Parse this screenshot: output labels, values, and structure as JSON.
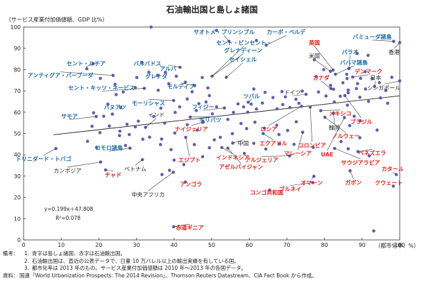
{
  "title": "石油輸出国と島しょ諸国",
  "chart_data": {
    "type": "scatter",
    "ylabel": "（サービス産業付加価値額、GDP 比%）",
    "xlabel": "（都市化率、%）",
    "xlim": [
      0,
      100
    ],
    "ylim": [
      0,
      100
    ],
    "xticks": [
      0,
      10,
      20,
      30,
      40,
      50,
      60,
      70,
      80,
      90,
      100
    ],
    "yticks": [
      0,
      10,
      20,
      30,
      40,
      50,
      60,
      70,
      80,
      90,
      100
    ],
    "grid": false,
    "colors": {
      "island": "#1a6ba8",
      "oil": "#e0211c",
      "other": "#222222",
      "point": "#5f5fae",
      "trend": "#222222"
    },
    "trendline": {
      "slope": 0.199,
      "intercept": 47.808,
      "equation": "y=0.199x＋47.808",
      "r2": "R²=0.078"
    },
    "labeled_points": [
      {
        "label": "香港",
        "x": 100,
        "y": 92.7,
        "group": "other",
        "lx": 98.5,
        "ly": 88.3
      },
      {
        "label": "バミューダ諸島",
        "x": 98.4,
        "y": 93.3,
        "group": "island",
        "lx": 92.7,
        "ly": 95.5
      },
      {
        "label": "サオトメ・プリンシプル",
        "x": 54.6,
        "y": 93.3,
        "group": "island",
        "lx": 53.3,
        "ly": 97.7
      },
      {
        "label": "カーボ・ベルデ",
        "x": 64.5,
        "y": 91.5,
        "group": "island",
        "lx": 69.8,
        "ly": 97.7
      },
      {
        "label": "セント・ビンセント・",
        "x": 50.1,
        "y": 76.9,
        "group": "island",
        "lx": 58.6,
        "ly": 92.7
      },
      {
        "label": "グレナディーン",
        "x": 50.1,
        "y": 76.9,
        "group": "island",
        "lx": 58.4,
        "ly": 89.1
      },
      {
        "label": "セイシェル",
        "x": 53.9,
        "y": 76.4,
        "group": "island",
        "lx": 58.3,
        "ly": 84.8
      },
      {
        "label": "英国",
        "x": 82.3,
        "y": 79.8,
        "group": "oil",
        "lx": 77.3,
        "ly": 92.7
      },
      {
        "label": "パラオ",
        "x": 86.5,
        "y": 80.5,
        "group": "island",
        "lx": 86.8,
        "ly": 88.3
      },
      {
        "label": "米国",
        "x": 81.6,
        "y": 79.2,
        "group": "other",
        "lx": 77.3,
        "ly": 86.5
      },
      {
        "label": "バハマ諸島",
        "x": 82.9,
        "y": 77.8,
        "group": "island",
        "lx": 87.8,
        "ly": 83.4
      },
      {
        "label": "デンマーク",
        "x": 87.5,
        "y": 76.5,
        "group": "oil",
        "lx": 91.7,
        "ly": 79.2
      },
      {
        "label": "カナダ",
        "x": 81.7,
        "y": 71.1,
        "group": "oil",
        "lx": 79.1,
        "ly": 76.3
      },
      {
        "label": "日本",
        "x": 93.3,
        "y": 72.1,
        "group": "other",
        "lx": 93.6,
        "ly": 76.3
      },
      {
        "label": "シンガポール",
        "x": 100,
        "y": 74.7,
        "group": "other",
        "lx": 95.8,
        "ly": 71.5
      },
      {
        "label": "ドイツ",
        "x": 75.1,
        "y": 68.4,
        "group": "other",
        "lx": 71.5,
        "ly": 69.3
      },
      {
        "label": "ブラジル",
        "x": 85.4,
        "y": 67.8,
        "group": "oil",
        "lx": 89.8,
        "ly": 55.6
      },
      {
        "label": "メキシコ",
        "x": 79,
        "y": 60.7,
        "group": "oil",
        "lx": 84.2,
        "ly": 59.4
      },
      {
        "label": "韓国",
        "x": 82.4,
        "y": 59.5,
        "group": "other",
        "lx": 82.6,
        "ly": 52.8
      },
      {
        "label": "ノルウェー",
        "x": 80.1,
        "y": 57.6,
        "group": "oil",
        "lx": 85.7,
        "ly": 48.8
      },
      {
        "label": "ロシア",
        "x": 73.9,
        "y": 62.8,
        "group": "oil",
        "lx": 65.2,
        "ly": 52.1
      },
      {
        "label": "コロンビア",
        "x": 76.2,
        "y": 62.4,
        "group": "oil",
        "lx": 76.7,
        "ly": 44.4
      },
      {
        "label": "エクアドル",
        "x": 63.7,
        "y": 50,
        "group": "oil",
        "lx": 66.4,
        "ly": 45.4
      },
      {
        "label": "マレーシア",
        "x": 74.2,
        "y": 50.6,
        "group": "oil",
        "lx": 72.9,
        "ly": 40.7
      },
      {
        "label": "UAE",
        "x": 85.3,
        "y": 57.5,
        "group": "oil",
        "lx": 80.7,
        "ly": 40.3
      },
      {
        "label": "ベネズエラ",
        "x": 88.9,
        "y": 41.5,
        "group": "oil",
        "lx": 92.7,
        "ly": 40.9
      },
      {
        "label": "サウジアラビア",
        "x": 82.7,
        "y": 43,
        "group": "oil",
        "lx": 89.6,
        "ly": 36.4
      },
      {
        "label": "オマーン",
        "x": 77.2,
        "y": 29.9,
        "group": "oil",
        "lx": 76.6,
        "ly": 26.9
      },
      {
        "label": "ブルネイ",
        "x": 76.9,
        "y": 26.9,
        "group": "oil",
        "lx": 70.9,
        "ly": 23.9
      },
      {
        "label": "ガボン",
        "x": 86.8,
        "y": 32.5,
        "group": "oil",
        "lx": 87.7,
        "ly": 27.1
      },
      {
        "label": "カタール",
        "x": 99.1,
        "y": 30.7,
        "group": "oil",
        "lx": 98.1,
        "ly": 33.4
      },
      {
        "label": "クウェート",
        "x": 98.3,
        "y": 25.3,
        "group": "oil",
        "lx": 97.1,
        "ly": 26.9
      },
      {
        "label": "コンゴ共和国",
        "x": 65.4,
        "y": 23.4,
        "group": "oil",
        "lx": 64.6,
        "ly": 22.3
      },
      {
        "label": "アルジェリア",
        "x": 70.7,
        "y": 39.5,
        "group": "oil",
        "lx": 63.3,
        "ly": 37.6
      },
      {
        "label": "アゼルバイジャン",
        "x": 54.3,
        "y": 43.1,
        "group": "oil",
        "lx": 57.8,
        "ly": 34.3
      },
      {
        "label": "インドネシア",
        "x": 52.7,
        "y": 43.4,
        "group": "oil",
        "lx": 55.6,
        "ly": 38.8
      },
      {
        "label": "中国",
        "x": 55.6,
        "y": 45.5,
        "group": "other",
        "lx": 58.4,
        "ly": 45.4
      },
      {
        "label": "エジプト",
        "x": 43.1,
        "y": 48.2,
        "group": "oil",
        "lx": 44.1,
        "ly": 37.6
      },
      {
        "label": "ナイジェリア",
        "x": 47.8,
        "y": 55.4,
        "group": "oil",
        "lx": 44.6,
        "ly": 52.1
      },
      {
        "label": "キリバツ",
        "x": 44.3,
        "y": 57.7,
        "group": "island",
        "lx": 49.6,
        "ly": 56.3
      },
      {
        "label": "フィジー",
        "x": 53.4,
        "y": 62,
        "group": "island",
        "lx": 47.7,
        "ly": 62.5
      },
      {
        "label": "ツバル",
        "x": 59.7,
        "y": 64.7,
        "group": "island",
        "lx": 60.6,
        "ly": 67.6
      },
      {
        "label": "インド",
        "x": 32.4,
        "y": 52.9,
        "group": "other",
        "lx": 35.3,
        "ly": 58.8
      },
      {
        "label": "モーリシャス",
        "x": 39.9,
        "y": 65.5,
        "group": "island",
        "lx": 33.2,
        "ly": 64.4
      },
      {
        "label": "モルディブ",
        "x": 45.5,
        "y": 72.5,
        "group": "island",
        "lx": 41.8,
        "ly": 72.1
      },
      {
        "label": "アルバ",
        "x": 41.6,
        "y": 81.1,
        "group": "island",
        "lx": 38.4,
        "ly": 80.5
      },
      {
        "label": "バルバドス",
        "x": 31.5,
        "y": 83.4,
        "group": "island",
        "lx": 32.9,
        "ly": 82.9
      },
      {
        "label": "グレナダ",
        "x": 35.6,
        "y": 77.3,
        "group": "island",
        "lx": 35.3,
        "ly": 76.9
      },
      {
        "label": "セント・ルチア",
        "x": 18.5,
        "y": 82.8,
        "group": "island",
        "lx": 16.6,
        "ly": 82.9
      },
      {
        "label": "アンティグア・バーブーダ",
        "x": 23.8,
        "y": 77.3,
        "group": "island",
        "lx": 9.8,
        "ly": 77.3
      },
      {
        "label": "セント・キッツ・ネービス",
        "x": 32.1,
        "y": 71.2,
        "group": "island",
        "lx": 20.7,
        "ly": 71.5
      },
      {
        "label": "バヌアツ",
        "x": 25.8,
        "y": 62.1,
        "group": "island",
        "lx": 24.3,
        "ly": 62.3
      },
      {
        "label": "サモア",
        "x": 19.3,
        "y": 58,
        "group": "island",
        "lx": 12.2,
        "ly": 58.1
      },
      {
        "label": "トリニダード・トバゴ",
        "x": 8.6,
        "y": 42.9,
        "group": "island",
        "lx": 5.3,
        "ly": 38.1
      },
      {
        "label": "コモロ諸島",
        "x": 28.3,
        "y": 43.1,
        "group": "island",
        "lx": 22.7,
        "ly": 43.3
      },
      {
        "label": "カンボジア",
        "x": 20.5,
        "y": 36.6,
        "group": "other",
        "lx": 11.7,
        "ly": 32.5
      },
      {
        "label": "チャド",
        "x": 21.8,
        "y": 32.9,
        "group": "oil",
        "lx": 23.8,
        "ly": 30.7
      },
      {
        "label": "ベトナム",
        "x": 31.6,
        "y": 37.7,
        "group": "other",
        "lx": 29.7,
        "ly": 33.4
      },
      {
        "label": "アンゴラ",
        "x": 43,
        "y": 27.2,
        "group": "oil",
        "lx": 44.5,
        "ly": 26.3
      },
      {
        "label": "中央アフリカ",
        "x": 39.8,
        "y": 31.8,
        "group": "other",
        "lx": 33.1,
        "ly": 21.4
      },
      {
        "label": "赤道ギニア",
        "x": 39.9,
        "y": 6.2,
        "group": "oil",
        "lx": 44.2,
        "ly": 5.8
      }
    ],
    "points": [
      [
        100,
        92.7
      ],
      [
        98.4,
        93.3
      ],
      [
        54.6,
        93.3
      ],
      [
        64.5,
        91.5
      ],
      [
        50.1,
        76.9
      ],
      [
        53.9,
        76.4
      ],
      [
        82.3,
        79.8
      ],
      [
        86.5,
        80.5
      ],
      [
        81.6,
        79.2
      ],
      [
        82.9,
        77.8
      ],
      [
        87.5,
        76.5
      ],
      [
        81.7,
        71.1
      ],
      [
        93.3,
        72.1
      ],
      [
        100,
        74.7
      ],
      [
        75.1,
        68.4
      ],
      [
        85.4,
        67.8
      ],
      [
        79,
        60.7
      ],
      [
        82.4,
        59.5
      ],
      [
        80.1,
        57.6
      ],
      [
        73.9,
        62.8
      ],
      [
        76.2,
        62.4
      ],
      [
        63.7,
        50
      ],
      [
        74.2,
        50.6
      ],
      [
        85.3,
        57.5
      ],
      [
        88.9,
        41.5
      ],
      [
        82.7,
        43
      ],
      [
        77.2,
        29.9
      ],
      [
        76.9,
        26.9
      ],
      [
        86.8,
        32.5
      ],
      [
        99.1,
        30.7
      ],
      [
        98.3,
        25.3
      ],
      [
        65.4,
        23.4
      ],
      [
        70.7,
        39.5
      ],
      [
        54.3,
        43.1
      ],
      [
        52.7,
        43.4
      ],
      [
        55.6,
        45.5
      ],
      [
        43.1,
        48.2
      ],
      [
        47.8,
        55.4
      ],
      [
        44.3,
        57.7
      ],
      [
        53.4,
        62
      ],
      [
        59.7,
        64.7
      ],
      [
        32.4,
        52.9
      ],
      [
        39.9,
        65.5
      ],
      [
        45.5,
        72.5
      ],
      [
        41.6,
        81.1
      ],
      [
        31.5,
        83.4
      ],
      [
        35.6,
        77.3
      ],
      [
        18.5,
        82.8
      ],
      [
        23.8,
        77.3
      ],
      [
        32.1,
        71.2
      ],
      [
        25.8,
        62.1
      ],
      [
        19.3,
        58
      ],
      [
        8.6,
        42.9
      ],
      [
        28.3,
        43.1
      ],
      [
        20.5,
        36.6
      ],
      [
        21.8,
        32.9
      ],
      [
        31.6,
        37.7
      ],
      [
        43,
        27.2
      ],
      [
        39.8,
        31.8
      ],
      [
        39.9,
        6.2
      ],
      [
        33.9,
        100
      ],
      [
        51.3,
        98.4
      ],
      [
        61.9,
        93.7
      ],
      [
        88.7,
        87.6
      ],
      [
        91.6,
        86.7
      ],
      [
        77.3,
        84.6
      ],
      [
        79.8,
        80
      ],
      [
        90.8,
        79
      ],
      [
        85.9,
        77.8
      ],
      [
        77.8,
        76.7
      ],
      [
        86,
        75.8
      ],
      [
        89.6,
        75.9
      ],
      [
        92.7,
        75.8
      ],
      [
        97.9,
        76.4
      ],
      [
        84.9,
        73.8
      ],
      [
        88.8,
        73.4
      ],
      [
        94.6,
        73.9
      ],
      [
        81.6,
        72.6
      ],
      [
        82.4,
        70.8
      ],
      [
        86.3,
        70.4
      ],
      [
        88.5,
        71.1
      ],
      [
        90.9,
        70.9
      ],
      [
        96.3,
        70.2
      ],
      [
        78.4,
        69.5
      ],
      [
        86.3,
        69.1
      ],
      [
        80.4,
        67.6
      ],
      [
        84.2,
        67.5
      ],
      [
        89.4,
        67
      ],
      [
        94.9,
        66.7
      ],
      [
        91.7,
        65.1
      ],
      [
        82.6,
        64.8
      ],
      [
        86.1,
        63.3
      ],
      [
        96.8,
        64.2
      ],
      [
        74.1,
        69.9
      ],
      [
        68.7,
        69.7
      ],
      [
        69.6,
        67.2
      ],
      [
        64.2,
        69.3
      ],
      [
        61.2,
        70.9
      ],
      [
        66.3,
        66.9
      ],
      [
        72.4,
        66.1
      ],
      [
        63.5,
        64.3
      ],
      [
        60.5,
        63.8
      ],
      [
        57,
        63.9
      ],
      [
        68.9,
        63.6
      ],
      [
        73.2,
        64.2
      ],
      [
        58.5,
        62.5
      ],
      [
        61.9,
        61.5
      ],
      [
        67.4,
        61.6
      ],
      [
        70.8,
        62.2
      ],
      [
        48.5,
        64.8
      ],
      [
        51.3,
        62.5
      ],
      [
        55.8,
        59.9
      ],
      [
        59.6,
        60
      ],
      [
        44.8,
        69.6
      ],
      [
        49,
        71.4
      ],
      [
        49.4,
        67.8
      ],
      [
        43.5,
        66.2
      ],
      [
        46.6,
        64
      ],
      [
        41.5,
        62.5
      ],
      [
        40.3,
        59.9
      ],
      [
        45.9,
        60.8
      ],
      [
        50.2,
        59.2
      ],
      [
        36.5,
        61.9
      ],
      [
        34.6,
        58
      ],
      [
        37.5,
        54.9
      ],
      [
        30.5,
        55.8
      ],
      [
        29.7,
        53.1
      ],
      [
        28.1,
        49.5
      ],
      [
        33.5,
        48.3
      ],
      [
        36.7,
        47.4
      ],
      [
        25.5,
        49
      ],
      [
        27.5,
        54.3
      ],
      [
        22.8,
        53.5
      ],
      [
        20.3,
        50.4
      ],
      [
        18.2,
        53.4
      ],
      [
        17,
        46.3
      ],
      [
        19.4,
        43.4
      ],
      [
        25.6,
        51.1
      ],
      [
        23.6,
        59.1
      ],
      [
        21.3,
        58.1
      ],
      [
        18.6,
        59.7
      ],
      [
        22.4,
        63.8
      ],
      [
        24.6,
        68.3
      ],
      [
        26.5,
        69.5
      ],
      [
        24.3,
        73.1
      ],
      [
        20.4,
        75.9
      ],
      [
        16.8,
        80.4
      ],
      [
        30.1,
        76.3
      ],
      [
        33.3,
        78.8
      ],
      [
        35.8,
        70.3
      ],
      [
        38.6,
        73.4
      ],
      [
        37.7,
        78.7
      ],
      [
        40.6,
        76.9
      ],
      [
        29.7,
        71.6
      ],
      [
        43,
        74.1
      ],
      [
        47.5,
        76.3
      ],
      [
        47.6,
        55.2
      ],
      [
        54.3,
        56.6
      ],
      [
        57.8,
        54.7
      ],
      [
        61.5,
        55.3
      ],
      [
        59.3,
        52.3
      ],
      [
        64,
        52.5
      ],
      [
        67.3,
        53.9
      ],
      [
        70.2,
        51.4
      ],
      [
        72.5,
        55.5
      ],
      [
        67.9,
        49.5
      ],
      [
        61.2,
        45.4
      ],
      [
        64.4,
        42.7
      ],
      [
        68.1,
        45.1
      ],
      [
        71.9,
        44.9
      ],
      [
        52.3,
        48.2
      ],
      [
        55.5,
        49.9
      ],
      [
        50.7,
        47
      ],
      [
        58.7,
        40.6
      ],
      [
        47.6,
        39.1
      ],
      [
        49.4,
        43.3
      ],
      [
        45.4,
        44.8
      ],
      [
        39.2,
        42.4
      ],
      [
        36.4,
        44.8
      ],
      [
        40.2,
        50.2
      ],
      [
        43.5,
        54.1
      ],
      [
        46.2,
        51.6
      ],
      [
        31.7,
        47.3
      ],
      [
        27.1,
        44.4
      ],
      [
        38.8,
        32.7
      ],
      [
        40,
        37.5
      ],
      [
        42.6,
        35.4
      ],
      [
        36.8,
        30.7
      ],
      [
        89.5,
        56
      ],
      [
        87.9,
        58.1
      ],
      [
        86.7,
        53.7
      ],
      [
        84.4,
        46.2
      ],
      [
        89.4,
        48
      ],
      [
        94,
        51.6
      ],
      [
        91.9,
        39.5
      ],
      [
        86.3,
        42.8
      ],
      [
        77,
        43.5
      ],
      [
        93.1,
        4.2
      ]
    ]
  },
  "notes": {
    "label_memo": "備考：",
    "label_source": "資料：",
    "items": [
      {
        "num": "1.",
        "text": "青字は島しょ諸国、赤字は石油輸出国。"
      },
      {
        "num": "2.",
        "text": "石油輸出国は、直近の公表データで、日量 10 万バレル以上の輸出実績を有している国。"
      },
      {
        "num": "3.",
        "text": "都市化率は 2013 年のもの。サービス産業付加価値額は 2010 年〜2013 年の各国データ。"
      }
    ],
    "source": "国連「World Urbanization Prospects: The 2014 Revision」、Thomson Reuters Datastream、CIA Fact Book から作成。"
  }
}
